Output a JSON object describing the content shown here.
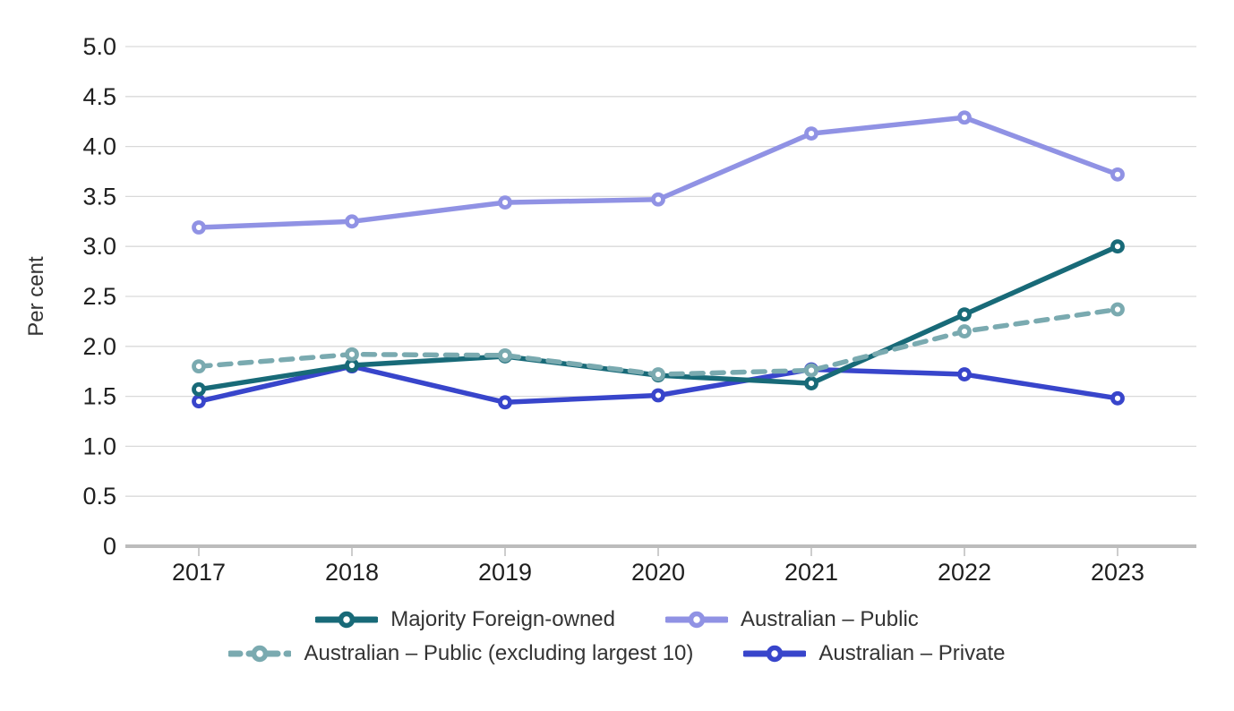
{
  "chart_data": {
    "type": "line",
    "title": "",
    "xlabel": "",
    "ylabel": "Per cent",
    "ylim": [
      0,
      5
    ],
    "grid": true,
    "legend_position": "bottom",
    "marker": "open-circle",
    "y_ticks": [
      "5.0",
      "4.5",
      "4.0",
      "3.5",
      "3.0",
      "2.5",
      "2.0",
      "1.5",
      "1.0",
      "0.5",
      "0"
    ],
    "y_tick_values": [
      5.0,
      4.5,
      4.0,
      3.5,
      3.0,
      2.5,
      2.0,
      1.5,
      1.0,
      0.5,
      0
    ],
    "categories": [
      "2017",
      "2018",
      "2019",
      "2020",
      "2021",
      "2022",
      "2023"
    ],
    "series": [
      {
        "name": "Majority Foreign-owned",
        "color": "#186a78",
        "style": "solid",
        "values": [
          1.57,
          1.81,
          1.9,
          1.71,
          1.63,
          2.32,
          3.0
        ]
      },
      {
        "name": "Australian – Public",
        "color": "#9092e4",
        "style": "solid",
        "values": [
          3.19,
          3.25,
          3.44,
          3.47,
          4.13,
          4.29,
          3.72
        ]
      },
      {
        "name": "Australian – Public (excluding largest 10)",
        "color": "#7aaab0",
        "style": "dashed",
        "values": [
          1.8,
          1.92,
          1.91,
          1.72,
          1.76,
          2.15,
          2.37
        ]
      },
      {
        "name": "Australian – Private",
        "color": "#3845cb",
        "style": "solid",
        "values": [
          1.45,
          1.8,
          1.44,
          1.51,
          1.77,
          1.72,
          1.48
        ]
      }
    ]
  },
  "colors": {
    "gridline": "#d9d9d9",
    "axis_line": "#bcbcbc",
    "tick_text": "#1f1f1f",
    "axis_title_text": "#333333",
    "legend_text": "#333333",
    "background": "#ffffff"
  }
}
